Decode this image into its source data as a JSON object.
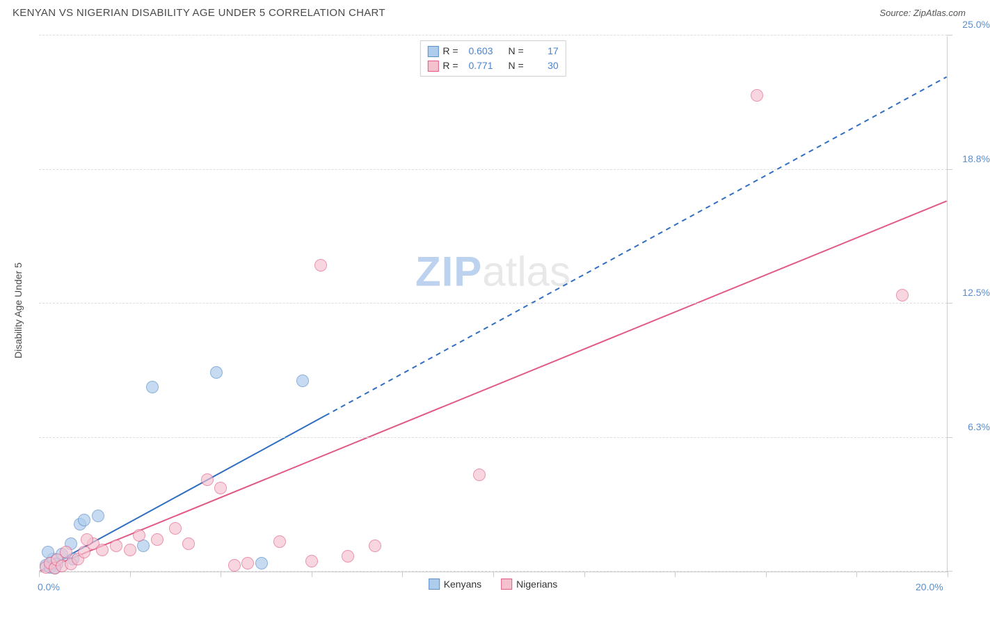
{
  "header": {
    "title": "KENYAN VS NIGERIAN DISABILITY AGE UNDER 5 CORRELATION CHART",
    "source_label": "Source:",
    "source_value": "ZipAtlas.com"
  },
  "watermark": {
    "zip": "ZIP",
    "atlas": "atlas"
  },
  "chart": {
    "type": "scatter",
    "y_axis_title": "Disability Age Under 5",
    "xlim": [
      0,
      20
    ],
    "ylim": [
      0,
      25
    ],
    "x_tick_positions": [
      0,
      2,
      4,
      6,
      8,
      10,
      12,
      14,
      16,
      18,
      20
    ],
    "y_grid_positions": [
      0,
      6.25,
      12.5,
      18.75,
      25
    ],
    "x_tick_labels": {
      "0": "0.0%",
      "20": "20.0%"
    },
    "y_tick_labels": [
      "25.0%",
      "18.8%",
      "12.5%",
      "6.3%"
    ],
    "y_tick_label_positions": [
      25,
      18.75,
      12.5,
      6.25
    ],
    "background_color": "#ffffff",
    "grid_color": "#dddddd",
    "axis_color": "#cccccc",
    "label_color": "#5b8ecb",
    "label_fontsize": 14,
    "title_fontsize": 15,
    "legend_bottom": {
      "items": [
        {
          "label": "Kenyans",
          "fill": "#aecdec",
          "stroke": "#5b8ecb"
        },
        {
          "label": "Nigerians",
          "fill": "#f4c1cf",
          "stroke": "#e15a84"
        }
      ]
    },
    "stats_box": {
      "rows": [
        {
          "swatch_fill": "#aecdec",
          "swatch_stroke": "#5b8ecb",
          "r": "0.603",
          "n": "17"
        },
        {
          "swatch_fill": "#f4c1cf",
          "swatch_stroke": "#e15a84",
          "r": "0.771",
          "n": "30"
        }
      ],
      "r_label": "R =",
      "n_label": "N ="
    },
    "series": [
      {
        "name": "Kenyans",
        "marker_fill": "#aecdec",
        "marker_stroke": "#5b8ecb",
        "marker_fill_opacity": 0.7,
        "marker_radius": 9,
        "trend_color": "#2f6fc1",
        "trend_width": 2,
        "trend_solid_to_x": 6.3,
        "trend_end_x": 20,
        "trend_end_y": 23.1,
        "points": [
          {
            "x": 0.15,
            "y": 0.3
          },
          {
            "x": 0.25,
            "y": 0.2
          },
          {
            "x": 0.3,
            "y": 0.6
          },
          {
            "x": 0.4,
            "y": 0.35
          },
          {
            "x": 0.5,
            "y": 0.8
          },
          {
            "x": 0.7,
            "y": 1.3
          },
          {
            "x": 0.75,
            "y": 0.6
          },
          {
            "x": 0.9,
            "y": 2.2
          },
          {
            "x": 1.0,
            "y": 2.4
          },
          {
            "x": 1.3,
            "y": 2.6
          },
          {
            "x": 2.3,
            "y": 1.2
          },
          {
            "x": 2.5,
            "y": 8.6
          },
          {
            "x": 3.9,
            "y": 9.3
          },
          {
            "x": 4.9,
            "y": 0.4
          },
          {
            "x": 5.8,
            "y": 8.9
          },
          {
            "x": 0.2,
            "y": 0.9
          },
          {
            "x": 0.35,
            "y": 0.15
          }
        ]
      },
      {
        "name": "Nigerians",
        "marker_fill": "#f4c1cf",
        "marker_stroke": "#e15a84",
        "marker_fill_opacity": 0.65,
        "marker_radius": 9,
        "trend_color": "#e15a84",
        "trend_width": 2,
        "trend_solid_to_x": 20,
        "trend_end_x": 20,
        "trend_end_y": 17.3,
        "points": [
          {
            "x": 0.15,
            "y": 0.2
          },
          {
            "x": 0.25,
            "y": 0.4
          },
          {
            "x": 0.35,
            "y": 0.15
          },
          {
            "x": 0.4,
            "y": 0.55
          },
          {
            "x": 0.5,
            "y": 0.25
          },
          {
            "x": 0.6,
            "y": 0.9
          },
          {
            "x": 0.7,
            "y": 0.35
          },
          {
            "x": 0.85,
            "y": 0.6
          },
          {
            "x": 1.0,
            "y": 0.9
          },
          {
            "x": 1.2,
            "y": 1.3
          },
          {
            "x": 1.4,
            "y": 1.0
          },
          {
            "x": 1.7,
            "y": 1.2
          },
          {
            "x": 2.0,
            "y": 1.0
          },
          {
            "x": 2.2,
            "y": 1.7
          },
          {
            "x": 2.6,
            "y": 1.5
          },
          {
            "x": 3.0,
            "y": 2.0
          },
          {
            "x": 3.3,
            "y": 1.3
          },
          {
            "x": 3.7,
            "y": 4.3
          },
          {
            "x": 4.0,
            "y": 3.9
          },
          {
            "x": 4.3,
            "y": 0.3
          },
          {
            "x": 4.6,
            "y": 0.4
          },
          {
            "x": 5.3,
            "y": 1.4
          },
          {
            "x": 6.0,
            "y": 0.5
          },
          {
            "x": 6.2,
            "y": 14.3
          },
          {
            "x": 6.8,
            "y": 0.7
          },
          {
            "x": 7.4,
            "y": 1.2
          },
          {
            "x": 9.7,
            "y": 4.5
          },
          {
            "x": 15.8,
            "y": 22.2
          },
          {
            "x": 19.0,
            "y": 12.9
          },
          {
            "x": 1.05,
            "y": 1.5
          }
        ]
      }
    ]
  }
}
